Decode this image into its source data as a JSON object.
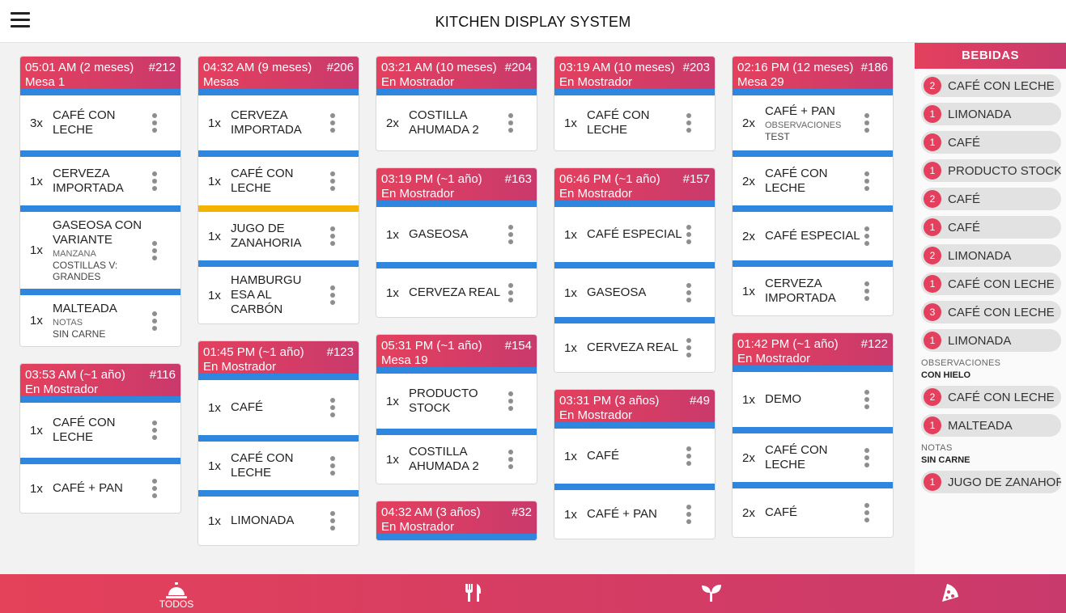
{
  "app": {
    "title": "KITCHEN DISPLAY SYSTEM"
  },
  "colors": {
    "accent": "#e4405e",
    "accent2": "#c93a6c",
    "divider": "#2f86df",
    "ready": "#f3b300"
  },
  "columns": [
    [
      {
        "time": "05:01 AM (2 meses)",
        "num": "#212",
        "loc": "Mesa 1",
        "items": [
          {
            "qty": "3x",
            "name": "CAFÉ CON LECHE"
          },
          {
            "qty": "1x",
            "name": "CERVEZA IMPORTADA"
          },
          {
            "qty": "1x",
            "name": "GASEOSA CON VARIANTE",
            "note_label": "MANZANA",
            "note_value": "COSTILLAS V: GRANDES"
          },
          {
            "qty": "1x",
            "name": "MALTEADA",
            "note_label": "NOTAS",
            "note_value": "SIN CARNE"
          }
        ]
      },
      {
        "time": "03:53 AM (~1 año)",
        "num": "#116",
        "loc": "En Mostrador",
        "items": [
          {
            "qty": "1x",
            "name": "CAFÉ CON LECHE"
          },
          {
            "qty": "1x",
            "name": "CAFÉ + PAN"
          }
        ]
      }
    ],
    [
      {
        "time": "04:32 AM (9 meses)",
        "num": "#206",
        "loc": "Mesas",
        "items": [
          {
            "qty": "1x",
            "name": "CERVEZA IMPORTADA"
          },
          {
            "qty": "1x",
            "name": "CAFÉ CON LECHE"
          },
          {
            "qty": "1x",
            "name": "JUGO DE ZANAHORIA",
            "sep": "yellow"
          },
          {
            "qty": "1x",
            "name": "HAMBURGU ESA AL CARBÓN"
          }
        ]
      },
      {
        "time": "01:45 PM (~1 año)",
        "num": "#123",
        "loc": "En Mostrador",
        "items": [
          {
            "qty": "1x",
            "name": "CAFÉ"
          },
          {
            "qty": "1x",
            "name": "CAFÉ CON LECHE"
          },
          {
            "qty": "1x",
            "name": "LIMONADA"
          }
        ]
      }
    ],
    [
      {
        "time": "03:21 AM (10 meses)",
        "num": "#204",
        "loc": "En Mostrador",
        "items": [
          {
            "qty": "2x",
            "name": "COSTILLA AHUMADA 2"
          }
        ]
      },
      {
        "time": "03:19 PM (~1 año)",
        "num": "#163",
        "loc": "En Mostrador",
        "items": [
          {
            "qty": "1x",
            "name": "GASEOSA"
          },
          {
            "qty": "1x",
            "name": "CERVEZA REAL"
          }
        ]
      },
      {
        "time": "05:31 PM (~1 año)",
        "num": "#154",
        "loc": "Mesa 19",
        "items": [
          {
            "qty": "1x",
            "name": "PRODUCTO STOCK"
          },
          {
            "qty": "1x",
            "name": "COSTILLA AHUMADA 2"
          }
        ]
      },
      {
        "time": "04:32 AM (3 años)",
        "num": "#32",
        "loc": "En Mostrador",
        "items": []
      }
    ],
    [
      {
        "time": "03:19 AM (10 meses)",
        "num": "#203",
        "loc": "En Mostrador",
        "items": [
          {
            "qty": "1x",
            "name": "CAFÉ CON LECHE"
          }
        ]
      },
      {
        "time": "06:46 PM (~1 año)",
        "num": "#157",
        "loc": "En Mostrador",
        "items": [
          {
            "qty": "1x",
            "name": "CAFÉ ESPECIAL"
          },
          {
            "qty": "1x",
            "name": "GASEOSA"
          },
          {
            "qty": "1x",
            "name": "CERVEZA REAL"
          }
        ]
      },
      {
        "time": "03:31 PM (3 años)",
        "num": "#49",
        "loc": "En Mostrador",
        "items": [
          {
            "qty": "1x",
            "name": "CAFÉ"
          },
          {
            "qty": "1x",
            "name": "CAFÉ + PAN"
          }
        ]
      }
    ],
    [
      {
        "time": "02:16 PM (12 meses)",
        "num": "#186",
        "loc": "Mesa 29",
        "items": [
          {
            "qty": "2x",
            "name": "CAFÉ + PAN",
            "note_label": "OBSERVACIONES",
            "note_value": "TEST"
          },
          {
            "qty": "2x",
            "name": "CAFÉ CON LECHE"
          },
          {
            "qty": "2x",
            "name": "CAFÉ ESPECIAL"
          },
          {
            "qty": "1x",
            "name": "CERVEZA IMPORTADA"
          }
        ]
      },
      {
        "time": "01:42 PM (~1 año)",
        "num": "#122",
        "loc": "En Mostrador",
        "items": [
          {
            "qty": "1x",
            "name": "DEMO"
          },
          {
            "qty": "2x",
            "name": "CAFÉ CON LECHE"
          },
          {
            "qty": "2x",
            "name": "CAFÉ"
          }
        ]
      }
    ]
  ],
  "drinks": {
    "title": "BEBIDAS",
    "rows": [
      {
        "count": "2",
        "name": "CAFÉ CON LECHE"
      },
      {
        "count": "1",
        "name": "LIMONADA"
      },
      {
        "count": "1",
        "name": "CAFÉ"
      },
      {
        "count": "1",
        "name": "PRODUCTO STOCK"
      },
      {
        "count": "2",
        "name": "CAFÉ"
      },
      {
        "count": "1",
        "name": "CAFÉ"
      },
      {
        "count": "2",
        "name": "LIMONADA"
      },
      {
        "count": "1",
        "name": "CAFÉ CON LECHE"
      },
      {
        "count": "3",
        "name": "CAFÉ CON LECHE"
      },
      {
        "count": "1",
        "name": "LIMONADA",
        "note_label": "OBSERVACIONES",
        "note_value": "CON HIELO"
      },
      {
        "count": "2",
        "name": "CAFÉ CON LECHE"
      },
      {
        "count": "1",
        "name": "MALTEADA",
        "note_label": "NOTAS",
        "note_value": "SIN CARNE"
      },
      {
        "count": "1",
        "name": "JUGO DE ZANAHORIA"
      }
    ]
  },
  "bottom_nav": [
    {
      "icon": "bell-icon",
      "label": "TODOS",
      "active": true
    },
    {
      "icon": "fork-knife-icon",
      "label": ""
    },
    {
      "icon": "sprout-icon",
      "label": ""
    },
    {
      "icon": "pizza-icon",
      "label": ""
    }
  ]
}
